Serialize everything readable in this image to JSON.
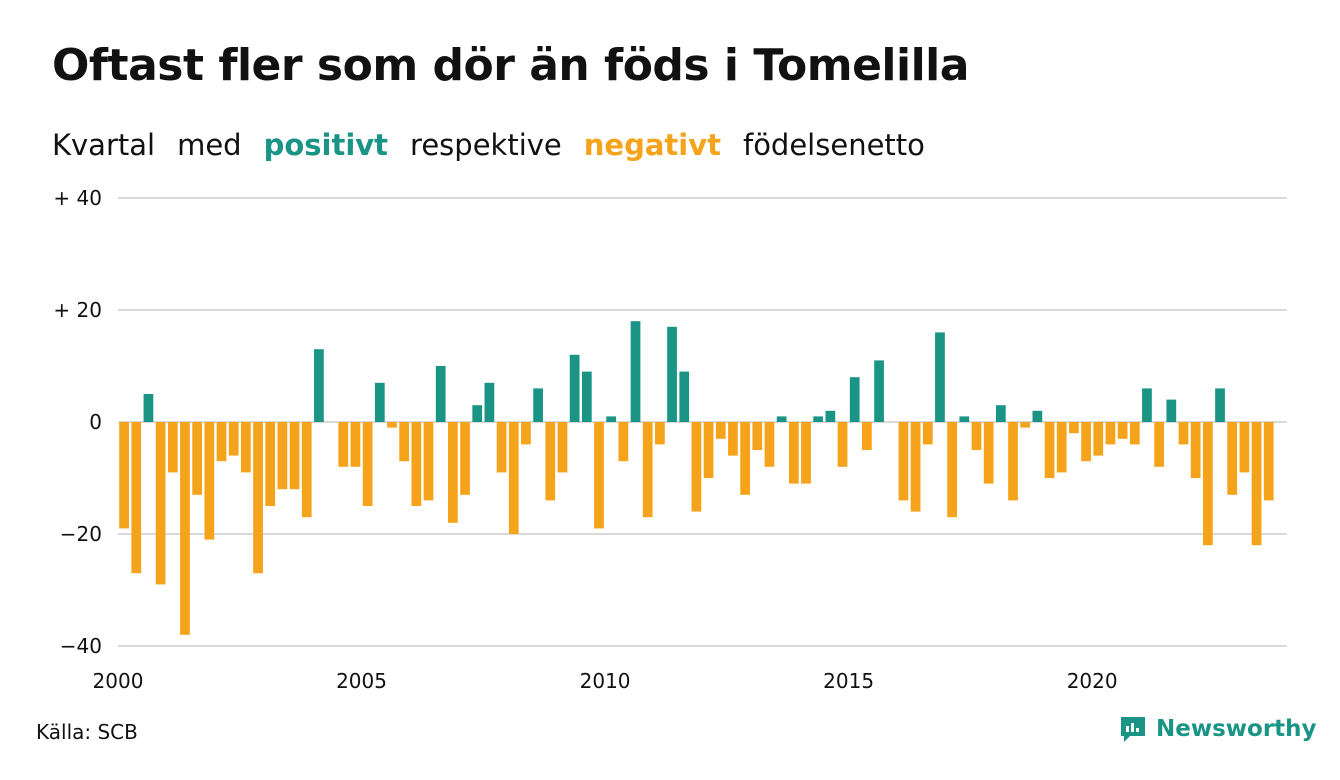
{
  "title": "Oftast fler som dör än föds i Tomelilla",
  "subtitle": {
    "part1": "Kvartal",
    "part2": "med",
    "positive_word": "positivt",
    "part3": "respektive",
    "negative_word": "negativt",
    "part4": "födelsenetto"
  },
  "source": "Källa: SCB",
  "brand": {
    "name": "Newsworthy",
    "icon": "newsworthy-logo-icon"
  },
  "colors": {
    "positive": "#1a9484",
    "negative": "#f5a31a",
    "grid": "#d9d9d9",
    "text": "#111111"
  },
  "chart_data": {
    "type": "bar",
    "title": "Oftast fler som dör än föds i Tomelilla",
    "subtitle": "Kvartal med positivt respektive negativt födelsenetto",
    "xlabel": "",
    "ylabel": "",
    "x_start": "2000 Q1",
    "x_end": "2023 Q4",
    "interval": "quarter",
    "x_ticks": [
      "2000",
      "2005",
      "2010",
      "2015",
      "2020"
    ],
    "y_ticks": [
      {
        "value": 40,
        "label": "+ 40"
      },
      {
        "value": 20,
        "label": "+ 20"
      },
      {
        "value": 0,
        "label": "0"
      },
      {
        "value": -20,
        "label": "−20"
      },
      {
        "value": -40,
        "label": "−40"
      }
    ],
    "ylim": [
      -40,
      40
    ],
    "grid": "horizontal",
    "legend": "none",
    "quarters": [
      "2000 Q1",
      "2000 Q2",
      "2000 Q3",
      "2000 Q4",
      "2001 Q1",
      "2001 Q2",
      "2001 Q3",
      "2001 Q4",
      "2002 Q1",
      "2002 Q2",
      "2002 Q3",
      "2002 Q4",
      "2003 Q1",
      "2003 Q2",
      "2003 Q3",
      "2003 Q4",
      "2004 Q1",
      "2004 Q2",
      "2004 Q3",
      "2004 Q4",
      "2005 Q1",
      "2005 Q2",
      "2005 Q3",
      "2005 Q4",
      "2006 Q1",
      "2006 Q2",
      "2006 Q3",
      "2006 Q4",
      "2007 Q1",
      "2007 Q2",
      "2007 Q3",
      "2007 Q4",
      "2008 Q1",
      "2008 Q2",
      "2008 Q3",
      "2008 Q4",
      "2009 Q1",
      "2009 Q2",
      "2009 Q3",
      "2009 Q4",
      "2010 Q1",
      "2010 Q2",
      "2010 Q3",
      "2010 Q4",
      "2011 Q1",
      "2011 Q2",
      "2011 Q3",
      "2011 Q4",
      "2012 Q1",
      "2012 Q2",
      "2012 Q3",
      "2012 Q4",
      "2013 Q1",
      "2013 Q2",
      "2013 Q3",
      "2013 Q4",
      "2014 Q1",
      "2014 Q2",
      "2014 Q3",
      "2014 Q4",
      "2015 Q1",
      "2015 Q2",
      "2015 Q3",
      "2015 Q4",
      "2016 Q1",
      "2016 Q2",
      "2016 Q3",
      "2016 Q4",
      "2017 Q1",
      "2017 Q2",
      "2017 Q3",
      "2017 Q4",
      "2018 Q1",
      "2018 Q2",
      "2018 Q3",
      "2018 Q4",
      "2019 Q1",
      "2019 Q2",
      "2019 Q3",
      "2019 Q4",
      "2020 Q1",
      "2020 Q2",
      "2020 Q3",
      "2020 Q4",
      "2021 Q1",
      "2021 Q2",
      "2021 Q3",
      "2021 Q4",
      "2022 Q1",
      "2022 Q2",
      "2022 Q3",
      "2022 Q4",
      "2023 Q1",
      "2023 Q2",
      "2023 Q3",
      "2023 Q4"
    ],
    "values": [
      -19,
      -27,
      5,
      -29,
      -9,
      -38,
      -13,
      -21,
      -7,
      -6,
      -9,
      -27,
      -15,
      -12,
      -12,
      -17,
      13,
      0,
      -8,
      -8,
      -15,
      7,
      -1,
      -7,
      -15,
      -14,
      10,
      -18,
      -13,
      3,
      7,
      -9,
      -20,
      -4,
      6,
      -14,
      -9,
      12,
      9,
      -19,
      1,
      -7,
      18,
      -17,
      -4,
      17,
      9,
      -16,
      -10,
      -3,
      -6,
      -13,
      -5,
      -8,
      1,
      -11,
      -11,
      1,
      2,
      -8,
      8,
      -5,
      11,
      0,
      -14,
      -16,
      -4,
      16,
      -17,
      1,
      -5,
      -11,
      3,
      -14,
      -1,
      2,
      -10,
      -9,
      -2,
      -7,
      -6,
      -4,
      -3,
      -4,
      6,
      -8,
      4,
      -4,
      -10,
      -22,
      6,
      -13,
      -9,
      -22,
      -14,
      0
    ]
  }
}
